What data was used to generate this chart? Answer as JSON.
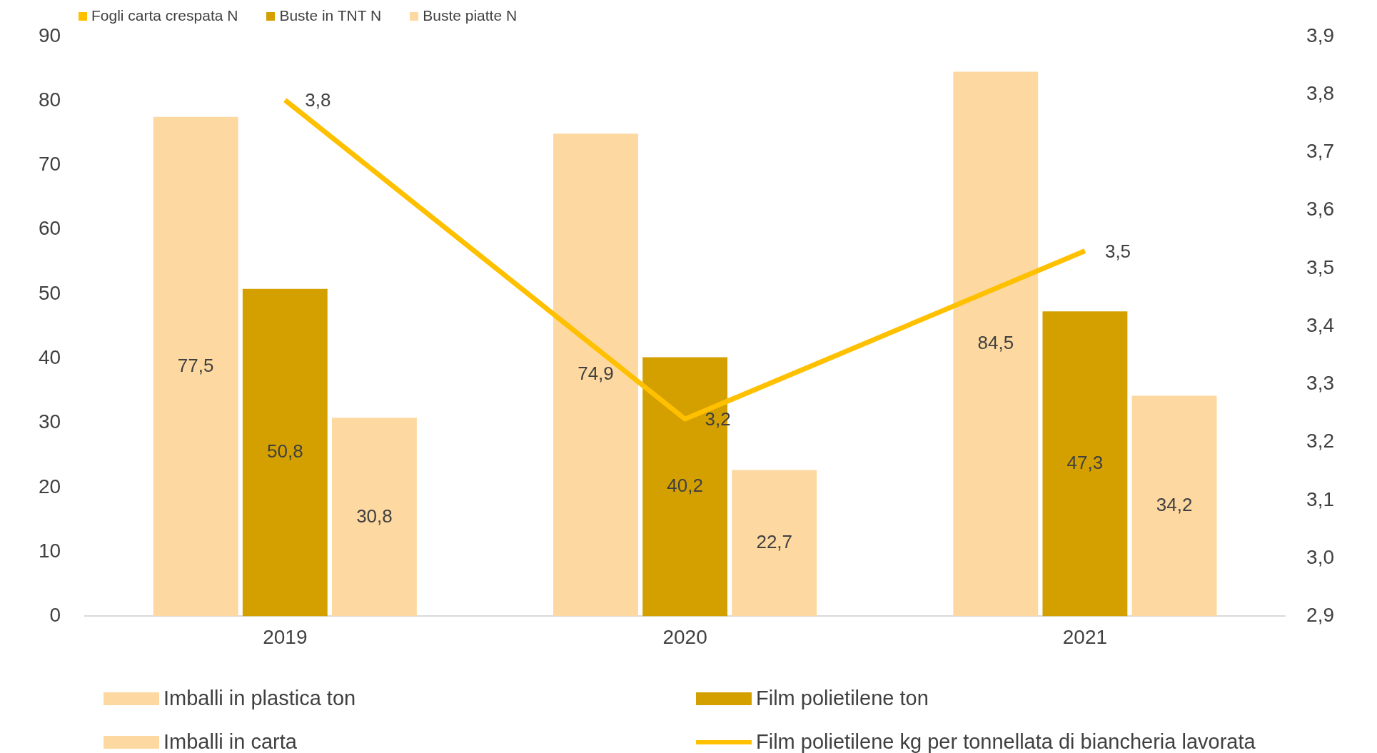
{
  "chart_data": {
    "type": "bar",
    "categories": [
      "2019",
      "2020",
      "2021"
    ],
    "series": [
      {
        "name": "Fogli carta crespata N",
        "color": "#ffc000",
        "values": [
          null,
          null,
          null
        ]
      },
      {
        "name": "Buste in TNT N",
        "color": "#d4a000",
        "values": [
          null,
          null,
          null
        ]
      },
      {
        "name": "Buste piatte N",
        "color": "#fdd8a0",
        "values": [
          null,
          null,
          null
        ]
      },
      {
        "name": "Imballi in plastica ton",
        "color": "#fdd8a0",
        "values": [
          77.5,
          74.9,
          84.5
        ],
        "value_labels": [
          "77,5",
          "74,9",
          "84,5"
        ]
      },
      {
        "name": "Film polietilene ton",
        "color": "#d4a000",
        "values": [
          50.8,
          40.2,
          47.3
        ],
        "value_labels": [
          "50,8",
          "40,2",
          "47,3"
        ]
      },
      {
        "name": "Imballi in carta",
        "color": "#fdd8a0",
        "values": [
          30.8,
          22.7,
          34.2
        ],
        "value_labels": [
          "30,8",
          "22,7",
          "34,2"
        ]
      },
      {
        "name": "Film polietilene kg per tonnellata di biancheria lavorata",
        "type": "line",
        "axis": "y2",
        "color": "#ffc000",
        "marker": "none",
        "values": [
          3.79,
          3.24,
          3.53
        ],
        "value_labels": [
          "3,8",
          "3,2",
          "3,5"
        ]
      }
    ],
    "ylim": [
      0,
      90
    ],
    "yticks": [
      0,
      10,
      20,
      30,
      40,
      50,
      60,
      70,
      80,
      90
    ],
    "y2lim": [
      2.9,
      3.9
    ],
    "y2ticks": [
      {
        "value": 2.9,
        "label": "2,9"
      },
      {
        "value": 3.0,
        "label": "3,0"
      },
      {
        "value": 3.1,
        "label": "3,1"
      },
      {
        "value": 3.2,
        "label": "3,2"
      },
      {
        "value": 3.3,
        "label": "3,3"
      },
      {
        "value": 3.4,
        "label": "3,4"
      },
      {
        "value": 3.5,
        "label": "3,5"
      },
      {
        "value": 3.6,
        "label": "3,6"
      },
      {
        "value": 3.7,
        "label": "3,7"
      },
      {
        "value": 3.8,
        "label": "3,8"
      },
      {
        "value": 3.9,
        "label": "3,9"
      }
    ],
    "grid": false,
    "legend": "bottom"
  }
}
